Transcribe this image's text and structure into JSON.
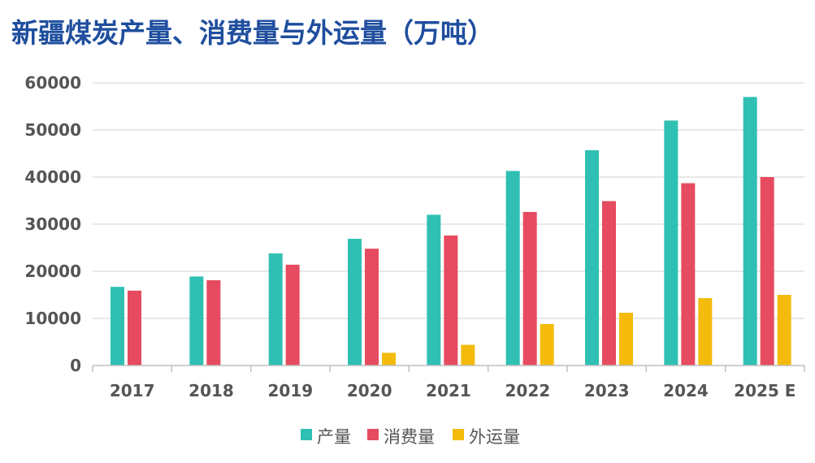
{
  "chart_data": {
    "type": "bar",
    "title": "新疆煤炭产量、消费量与外运量（万吨）",
    "categories": [
      "2017",
      "2018",
      "2019",
      "2020",
      "2021",
      "2022",
      "2023",
      "2024",
      "2025 E"
    ],
    "series": [
      {
        "name": "产量",
        "color": "#2fc0b3",
        "values": [
          16700,
          18900,
          23800,
          26900,
          32000,
          41300,
          45700,
          52000,
          57000
        ]
      },
      {
        "name": "消费量",
        "color": "#e64b5f",
        "values": [
          15900,
          18100,
          21400,
          24800,
          27600,
          32600,
          34900,
          38700,
          40000
        ]
      },
      {
        "name": "外运量",
        "color": "#f4bb0c",
        "values": [
          null,
          null,
          null,
          2700,
          4400,
          8800,
          11200,
          14300,
          15000
        ]
      }
    ],
    "ylim": [
      0,
      60000
    ],
    "yticks": [
      "0",
      "10000",
      "20000",
      "30000",
      "40000",
      "50000",
      "60000"
    ],
    "xlabel": "",
    "ylabel": "",
    "grid": true,
    "legend": "bottom"
  }
}
